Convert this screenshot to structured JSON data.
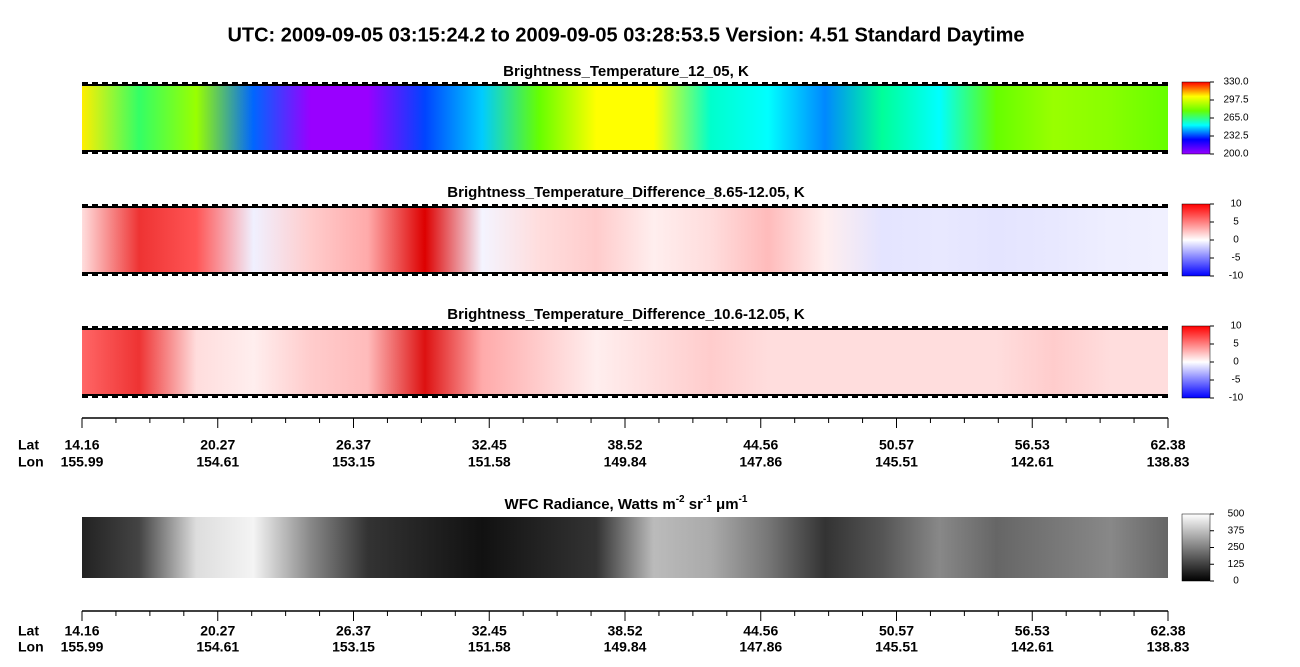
{
  "title": "UTC:  2009-09-05   03:15:24.2  to  2009-09-05   03:28:53.5    Version: 4.51  Standard Daytime",
  "chart_data": [
    {
      "type": "image",
      "title": "Brightness_Temperature_12_05, K",
      "colorbar": {
        "colors": [
          "#9900ff",
          "#0000ff",
          "#00ffff",
          "#66ff00",
          "#ffff00",
          "#ff0000"
        ],
        "clim": [
          200,
          330
        ],
        "cticks": [
          {
            "value": 200,
            "label": "200.0"
          },
          {
            "value": 232.5,
            "label": "232.5"
          },
          {
            "value": 265,
            "label": "265.0"
          },
          {
            "value": 297.5,
            "label": "297.5"
          },
          {
            "value": 330,
            "label": "330.0"
          }
        ]
      }
    },
    {
      "type": "image",
      "title": "Brightness_Temperature_Difference_8.65-12.05, K",
      "colorbar": {
        "colors": [
          "#0000ff",
          "#ffffff",
          "#ff0000"
        ],
        "clim": [
          -10,
          10
        ],
        "cticks": [
          -10,
          -5,
          0,
          5,
          10
        ]
      }
    },
    {
      "type": "image",
      "title": "Brightness_Temperature_Difference_10.6-12.05, K",
      "colorbar": {
        "colors": [
          "#0000ff",
          "#ffffff",
          "#ff0000"
        ],
        "clim": [
          -10,
          10
        ],
        "cticks": [
          -10,
          -5,
          0,
          5,
          10
        ]
      }
    },
    {
      "type": "image",
      "title_parts": [
        "WFC Radiance, Watts m",
        "-2",
        " sr",
        "-1",
        " μm",
        "-1"
      ],
      "colorbar": {
        "colors": [
          "#000000",
          "#ffffff"
        ],
        "clim": [
          0,
          500
        ],
        "cticks": [
          0,
          125,
          250,
          375,
          500
        ]
      }
    }
  ],
  "location_axes": [
    {
      "lat_name": "Lat",
      "lon_name": "Lon",
      "lat": [
        "14.16",
        "20.27",
        "26.37",
        "32.45",
        "38.52",
        "44.56",
        "50.57",
        "56.53",
        "62.38"
      ],
      "lon": [
        "155.99",
        "154.61",
        "153.15",
        "151.58",
        "149.84",
        "147.86",
        "145.51",
        "142.61",
        "138.83"
      ]
    },
    {
      "lat_name": "Lat",
      "lon_name": "Lon",
      "lat": [
        "14.16",
        "20.27",
        "26.37",
        "32.45",
        "38.52",
        "44.56",
        "50.57",
        "56.53",
        "62.38"
      ],
      "lon": [
        "155.99",
        "154.61",
        "153.15",
        "151.58",
        "149.84",
        "147.86",
        "145.51",
        "142.61",
        "138.83"
      ]
    }
  ]
}
